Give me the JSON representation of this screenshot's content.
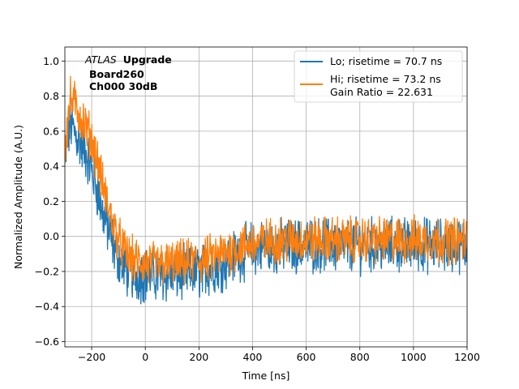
{
  "chart_data": {
    "type": "line",
    "title": "",
    "xlabel": "Time [ns]",
    "ylabel": "Normalized Amplitude (A.U.)",
    "xlim": [
      -300,
      1200
    ],
    "ylim": [
      -0.63,
      1.08
    ],
    "xticks": [
      -200,
      0,
      200,
      400,
      600,
      800,
      1000,
      1200
    ],
    "yticks": [
      -0.6,
      -0.4,
      -0.2,
      0.0,
      0.2,
      0.4,
      0.6,
      0.8,
      1.0
    ],
    "xtick_labels": [
      "−200",
      "0",
      "200",
      "400",
      "600",
      "800",
      "1000",
      "1200"
    ],
    "ytick_labels": [
      "−0.6",
      "−0.4",
      "−0.2",
      "0.0",
      "0.2",
      "0.4",
      "0.6",
      "0.8",
      "1.0"
    ],
    "grid": true,
    "legend_position": "top-right",
    "annotation": {
      "italic": "ATLAS",
      "bold": "Upgrade",
      "line2": "Board260",
      "line3": "Ch000 30dB"
    },
    "series": [
      {
        "name": "Lo; risetime = 70.7 ns",
        "color": "#1f77b4",
        "x": [
          -300,
          -280,
          -260,
          -240,
          -220,
          -200,
          -180,
          -160,
          -140,
          -120,
          -100,
          -80,
          -60,
          -40,
          -20,
          0,
          50,
          100,
          150,
          200,
          250,
          300,
          350,
          400,
          450,
          500,
          600,
          700,
          800,
          900,
          1000,
          1100,
          1200
        ],
        "y": [
          0.42,
          0.65,
          0.58,
          0.52,
          0.47,
          0.38,
          0.27,
          0.14,
          0.05,
          -0.05,
          -0.12,
          -0.17,
          -0.2,
          -0.22,
          -0.22,
          -0.22,
          -0.22,
          -0.22,
          -0.21,
          -0.2,
          -0.18,
          -0.14,
          -0.1,
          -0.07,
          -0.06,
          -0.06,
          -0.05,
          -0.05,
          -0.05,
          -0.05,
          -0.05,
          -0.05,
          -0.05
        ],
        "noise_amplitude": 0.13
      },
      {
        "name": "Hi; risetime = 73.2 ns\n Gain Ratio = 22.631",
        "color": "#ff7f0e",
        "x": [
          -300,
          -280,
          -260,
          -240,
          -220,
          -200,
          -180,
          -160,
          -140,
          -120,
          -100,
          -80,
          -60,
          -40,
          -20,
          0,
          50,
          100,
          150,
          200,
          250,
          300,
          350,
          400,
          450,
          500,
          600,
          700,
          800,
          900,
          1000,
          1100,
          1200
        ],
        "y": [
          0.5,
          0.78,
          0.75,
          0.68,
          0.62,
          0.55,
          0.44,
          0.3,
          0.18,
          0.07,
          -0.02,
          -0.08,
          -0.12,
          -0.14,
          -0.15,
          -0.16,
          -0.16,
          -0.16,
          -0.15,
          -0.14,
          -0.12,
          -0.09,
          -0.06,
          -0.04,
          -0.03,
          -0.02,
          -0.02,
          -0.02,
          -0.02,
          -0.02,
          -0.02,
          -0.02,
          -0.02
        ],
        "noise_amplitude": 0.11
      }
    ]
  }
}
